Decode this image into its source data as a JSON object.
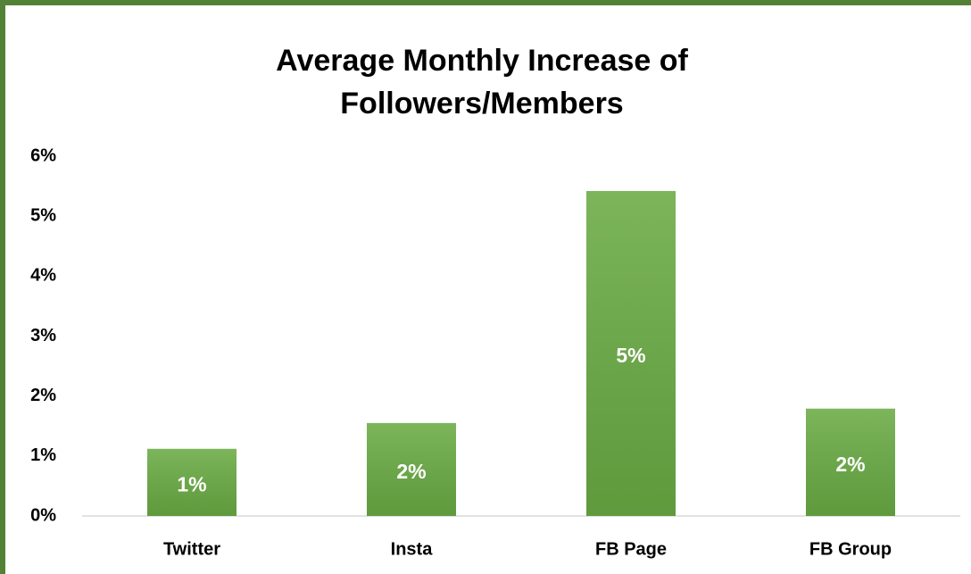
{
  "chart_data": {
    "type": "bar",
    "title": [
      "Average Monthly Increase of",
      "Followers/Members"
    ],
    "categories": [
      "Twitter",
      "Insta",
      "FB Page",
      "FB Group"
    ],
    "values": [
      1.12,
      1.55,
      5.42,
      1.79
    ],
    "value_labels": [
      "1%",
      "2%",
      "5%",
      "2%"
    ],
    "color": "#6aab44",
    "ylim": [
      0,
      6
    ],
    "yticks": [
      {
        "value": 0,
        "label": "0%"
      },
      {
        "value": 1,
        "label": "1%"
      },
      {
        "value": 2,
        "label": "2%"
      },
      {
        "value": 3,
        "label": "3%"
      },
      {
        "value": 4,
        "label": "4%"
      },
      {
        "value": 5,
        "label": "5%"
      },
      {
        "value": 6,
        "label": "6%"
      }
    ],
    "grid": false
  }
}
